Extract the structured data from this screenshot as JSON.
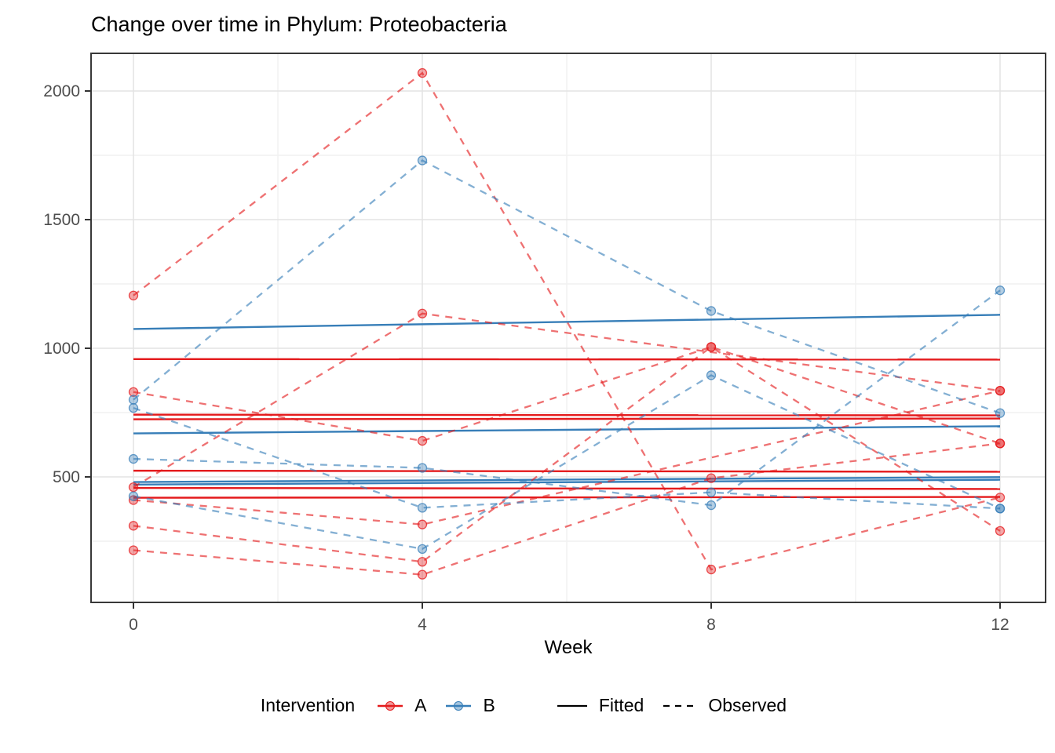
{
  "title": "Change over time in Phylum: Proteobacteria",
  "colors": {
    "intervention_a": "#E41A1C",
    "intervention_b": "#377EB8",
    "grid_major": "#E4E4E4",
    "grid_minor": "#F1F1F1",
    "panel_border": "#383838",
    "tick_mark": "#333333",
    "tick_label": "#4D4D4D",
    "legend_key_line": "#000000"
  },
  "chart_data": {
    "type": "line",
    "title": "Change over time in Phylum: Proteobacteria",
    "xlabel": "Week",
    "ylabel": "",
    "x": [
      0,
      4,
      8,
      12
    ],
    "xtick_labels": [
      "0",
      "4",
      "8",
      "12"
    ],
    "x_minor": [
      2,
      6,
      10
    ],
    "yticks": [
      500,
      1000,
      1500,
      2000
    ],
    "ytick_labels": [
      "500",
      "1000",
      "1500",
      "2000"
    ],
    "y_minor": [
      250,
      750,
      1250,
      1750
    ],
    "ylim": [
      10,
      2150
    ],
    "grid": true,
    "legend_position": "bottom",
    "note": "observed = dashed line with points (null = missing visit, line bridges gap); fitted = solid near-horizontal line from week 0 to week 12",
    "series": [
      {
        "group": "A",
        "subject": "A1",
        "observed": [
          1205,
          2070,
          140,
          420
        ],
        "fitted": [
          958,
          956
        ]
      },
      {
        "group": "A",
        "subject": "A2",
        "observed": [
          830,
          640,
          1005,
          290
        ],
        "fitted": [
          742,
          739
        ]
      },
      {
        "group": "A",
        "subject": "A3",
        "observed": [
          460,
          1135,
          null,
          835
        ],
        "fitted": [
          724,
          727
        ]
      },
      {
        "group": "A",
        "subject": "A4",
        "observed": [
          410,
          315,
          null,
          835
        ],
        "fitted": [
          524,
          520
        ]
      },
      {
        "group": "A",
        "subject": "A5",
        "observed": [
          310,
          170,
          1005,
          630
        ],
        "fitted": [
          457,
          453
        ]
      },
      {
        "group": "A",
        "subject": "A6",
        "observed": [
          215,
          120,
          495,
          630
        ],
        "fitted": [
          419,
          422
        ]
      },
      {
        "group": "B",
        "subject": "B1",
        "observed": [
          800,
          1730,
          1145,
          748
        ],
        "fitted": [
          1075,
          1130
        ]
      },
      {
        "group": "B",
        "subject": "B2",
        "observed": [
          768,
          380,
          440,
          377
        ],
        "fitted": [
          480,
          499
        ]
      },
      {
        "group": "B",
        "subject": "B3",
        "observed": [
          570,
          535,
          390,
          1225
        ],
        "fitted": [
          669,
          697
        ]
      },
      {
        "group": "B",
        "subject": "B4",
        "observed": [
          425,
          220,
          895,
          377
        ],
        "fitted": [
          470,
          489
        ]
      }
    ]
  },
  "legend": {
    "title": "Intervention",
    "group_a_label": "A",
    "group_b_label": "B",
    "fitted_label": "Fitted",
    "observed_label": "Observed"
  }
}
